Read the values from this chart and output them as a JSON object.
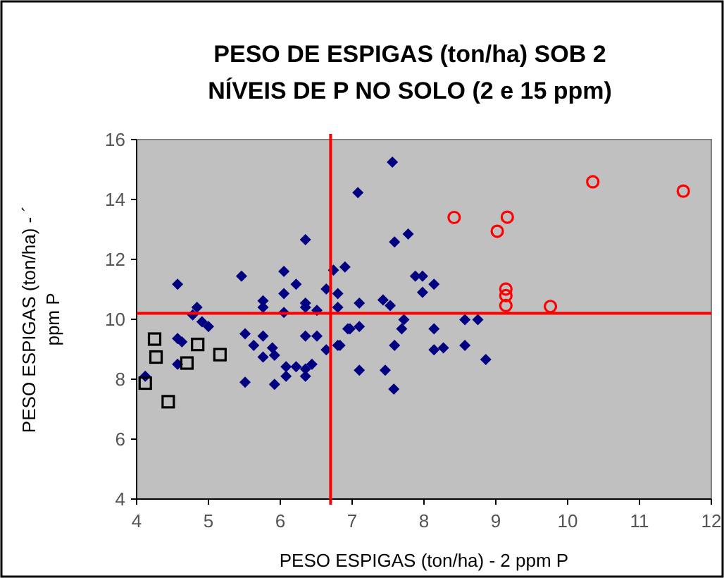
{
  "chart_data": {
    "type": "scatter",
    "title": "PESO DE ESPIGAS (ton/ha) SOB 2\nNÍVEIS DE P NO SOLO (2 e 15 ppm)",
    "xlabel": "PESO ESPIGAS (ton/ha) - 2 ppm P",
    "ylabel": "PESO ESPIGAS (ton/ha) - ´\nppm P",
    "xlim": [
      4,
      12
    ],
    "xticks": [
      4,
      5,
      6,
      7,
      8,
      9,
      10,
      11,
      12
    ],
    "ylim": [
      4,
      16
    ],
    "yticks": [
      4,
      6,
      8,
      10,
      12,
      14,
      16
    ],
    "grid": false,
    "series": [
      {
        "color": "#000080",
        "marker": "diamond",
        "x": [
          4.57,
          4.12,
          4.84,
          4.78,
          4.91,
          5.0,
          4.57,
          4.63,
          4.57,
          5.46,
          5.51,
          5.63,
          5.76,
          5.76,
          5.76,
          5.76,
          5.89,
          5.92,
          5.51,
          5.92,
          6.05,
          6.05,
          6.05,
          6.22,
          6.35,
          6.35,
          6.35,
          6.51,
          6.35,
          6.51,
          6.08,
          6.08,
          6.22,
          6.35,
          6.44,
          6.35,
          6.64,
          6.64,
          6.74,
          6.9,
          6.8,
          6.8,
          6.94,
          6.8,
          7.56,
          7.08,
          7.59,
          7.78,
          7.88,
          7.98,
          7.98,
          8.14,
          7.1,
          7.43,
          7.53,
          7.72,
          7.69,
          6.97,
          7.1,
          6.83,
          7.59,
          8.14,
          8.14,
          8.27,
          8.57,
          8.75,
          8.57,
          8.86,
          7.1,
          7.46,
          7.58
        ],
        "values": [
          11.17,
          8.1,
          10.4,
          10.15,
          9.92,
          9.76,
          9.36,
          9.25,
          8.5,
          11.44,
          9.52,
          9.13,
          9.44,
          10.62,
          10.4,
          8.74,
          9.05,
          8.8,
          7.9,
          7.83,
          11.6,
          10.86,
          10.23,
          11.17,
          12.66,
          10.54,
          10.4,
          10.3,
          9.44,
          9.44,
          8.42,
          8.1,
          8.42,
          8.34,
          8.5,
          8.1,
          8.98,
          11.01,
          11.64,
          11.75,
          10.86,
          10.4,
          9.68,
          9.13,
          15.25,
          14.23,
          12.58,
          12.85,
          11.44,
          11.44,
          10.9,
          11.17,
          10.54,
          10.65,
          10.46,
          9.99,
          9.68,
          9.68,
          9.76,
          9.13,
          9.13,
          9.68,
          8.98,
          9.05,
          9.99,
          9.99,
          9.13,
          8.66,
          8.3,
          8.3,
          7.67
        ]
      },
      {
        "color": "#000000",
        "marker": "square",
        "x": [
          4.25,
          4.27,
          4.12,
          4.44,
          4.7,
          4.85,
          5.16
        ],
        "values": [
          9.34,
          8.74,
          7.87,
          7.25,
          8.54,
          9.16,
          8.82
        ]
      },
      {
        "color": "#ff0000",
        "marker": "circle",
        "x": [
          8.42,
          9.16,
          9.02,
          9.14,
          9.14,
          9.14,
          10.35,
          11.61,
          9.76
        ],
        "values": [
          13.4,
          13.41,
          12.94,
          11.01,
          10.79,
          10.46,
          14.59,
          14.28,
          10.43
        ]
      }
    ],
    "ref_lines": [
      {
        "axis": "x",
        "value": 6.7,
        "color": "#ff0000"
      },
      {
        "axis": "y",
        "value": 10.2,
        "color": "#ff0000"
      }
    ]
  }
}
